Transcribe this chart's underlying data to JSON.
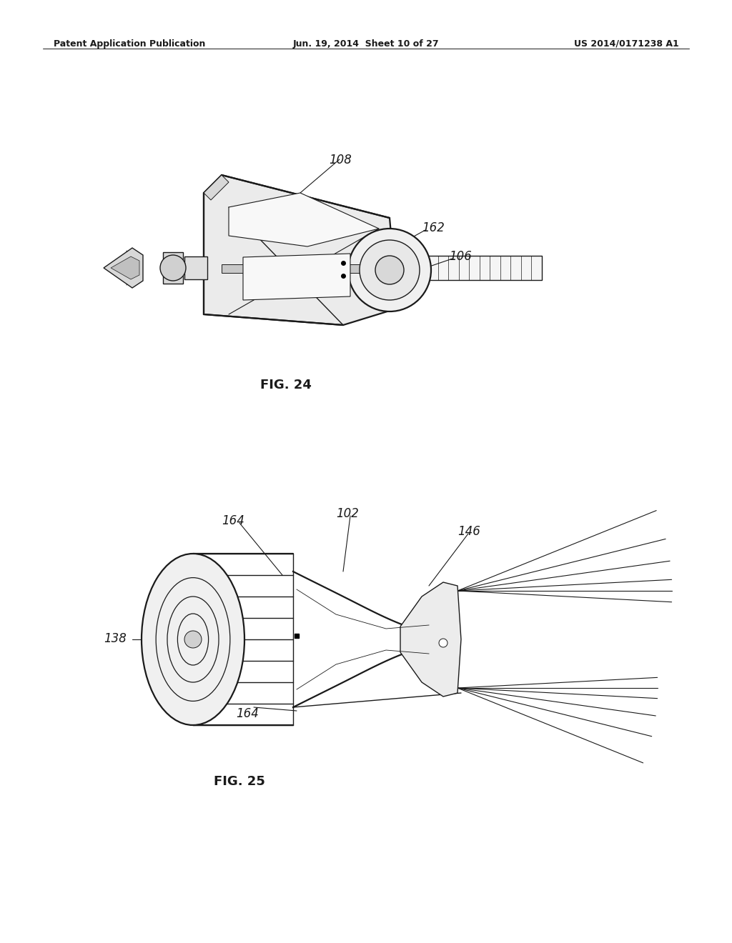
{
  "background_color": "#ffffff",
  "header_left": "Patent Application Publication",
  "header_center": "Jun. 19, 2014  Sheet 10 of 27",
  "header_right": "US 2014/0171238 A1",
  "fig24_label": "FIG. 24",
  "fig25_label": "FIG. 25",
  "line_color": "#1a1a1a",
  "lw_main": 1.0,
  "lw_thick": 1.6,
  "lw_thin": 0.6,
  "label_fontsize": 11,
  "header_fontsize": 9,
  "fig_label_fontsize": 13
}
